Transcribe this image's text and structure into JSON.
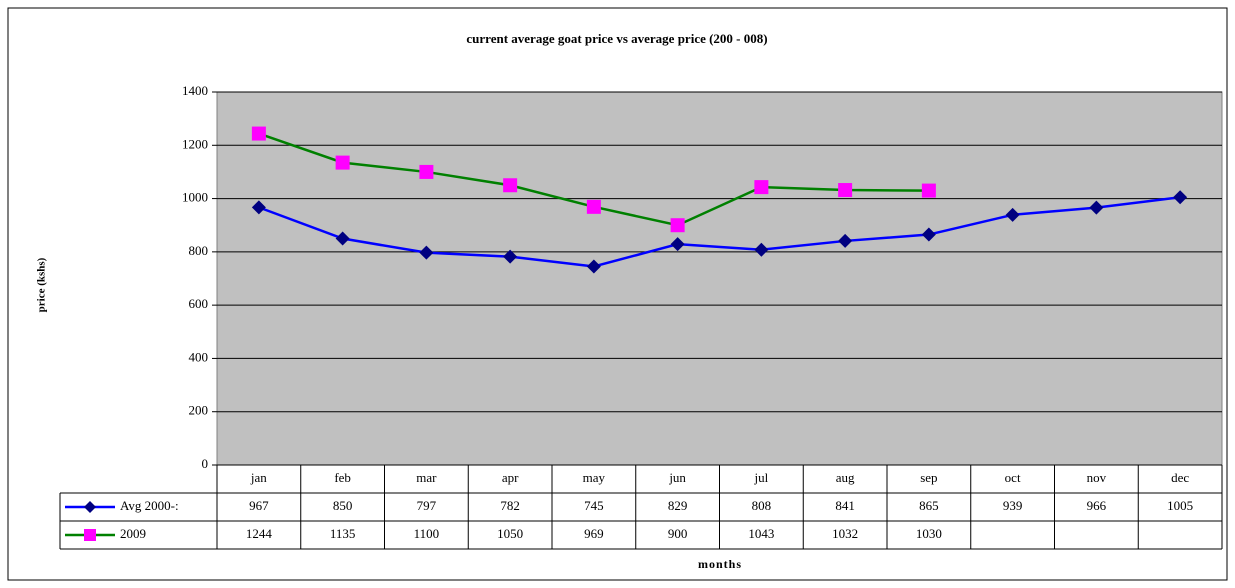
{
  "chart_data": {
    "type": "line",
    "title": "current average goat price vs average price (200 - 008)",
    "y_label": "price (kshs)",
    "x_label": "months",
    "categories": [
      "jan",
      "feb",
      "mar",
      "apr",
      "may",
      "jun",
      "jul",
      "aug",
      "sep",
      "oct",
      "nov",
      "dec"
    ],
    "series": [
      {
        "name": "Avg 2000-:",
        "color": "#0000ff",
        "marker_color": "#000080",
        "marker": "diamond",
        "values": [
          967,
          850,
          797,
          782,
          745,
          829,
          808,
          841,
          865,
          939,
          966,
          1005
        ]
      },
      {
        "name": "2009",
        "color": "#008000",
        "marker_color": "#ff00ff",
        "marker": "square",
        "values": [
          1244,
          1135,
          1100,
          1050,
          969,
          900,
          1043,
          1032,
          1030,
          null,
          null,
          null
        ]
      }
    ],
    "ylim": [
      0,
      1400
    ],
    "yticks": [
      0,
      200,
      400,
      600,
      800,
      1000,
      1200,
      1400
    ],
    "grid": true,
    "plot_background": "#c0c0c0"
  }
}
